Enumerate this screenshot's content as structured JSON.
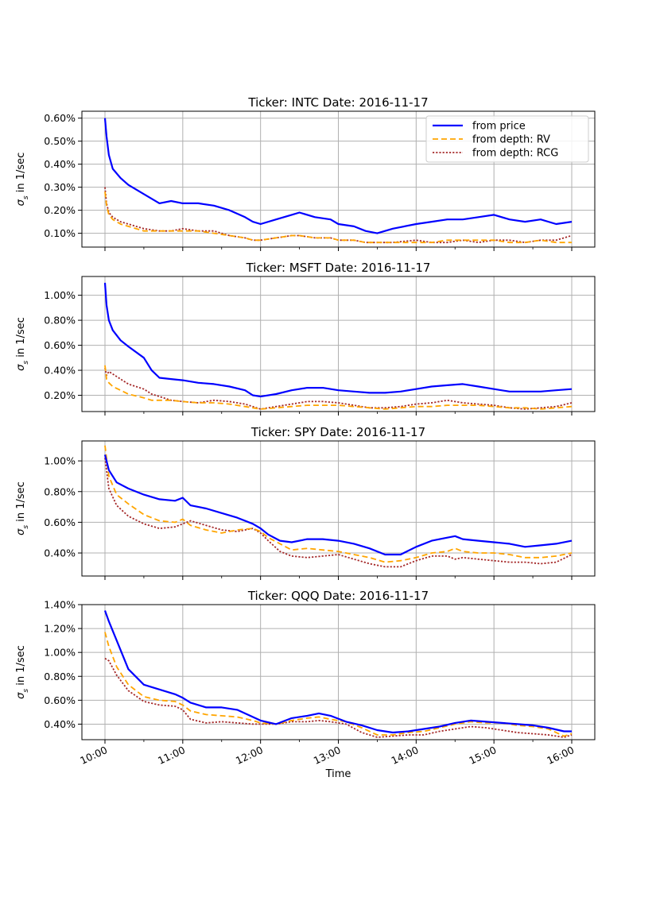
{
  "chart_data": {
    "type": "line",
    "xlabel": "Time",
    "ylabel_prefix": "σ",
    "ylabel_sub": "s",
    "ylabel_suffix": " in 1/sec",
    "x_ticks": [
      "10:00",
      "11:00",
      "12:00",
      "13:00",
      "14:00",
      "15:00",
      "16:00"
    ],
    "x_range_hours": [
      10,
      16
    ],
    "legend": {
      "location": "top-right",
      "entries": [
        "from price",
        "from depth: RV",
        "from depth: RCG"
      ]
    },
    "series_styles": [
      {
        "name": "from price",
        "color": "#0000ff",
        "dash": "solid"
      },
      {
        "name": "from depth: RV",
        "color": "#ffa500",
        "dash": "dashed"
      },
      {
        "name": "from depth: RCG",
        "color": "#a52a2a",
        "dash": "dotted"
      }
    ],
    "panels": [
      {
        "title": "Ticker: INTC     Date: 2016-11-17",
        "ylim": [
          0.0004,
          0.0063
        ],
        "yticks": [
          0.001,
          0.002,
          0.003,
          0.004,
          0.005,
          0.006
        ],
        "ytick_labels": [
          "0.10%",
          "0.20%",
          "0.30%",
          "0.40%",
          "0.50%",
          "0.60%"
        ],
        "x": [
          10.0,
          10.02,
          10.05,
          10.1,
          10.2,
          10.3,
          10.5,
          10.7,
          10.85,
          11.0,
          11.2,
          11.4,
          11.6,
          11.8,
          11.9,
          12.0,
          12.2,
          12.4,
          12.5,
          12.7,
          12.9,
          13.0,
          13.2,
          13.35,
          13.5,
          13.7,
          14.0,
          14.2,
          14.4,
          14.6,
          14.8,
          15.0,
          15.2,
          15.4,
          15.6,
          15.8,
          16.0
        ],
        "series": [
          {
            "name": "from price",
            "values": [
              0.006,
              0.0052,
              0.0044,
              0.0038,
              0.0034,
              0.0031,
              0.0027,
              0.0023,
              0.0024,
              0.0023,
              0.0023,
              0.0022,
              0.002,
              0.0017,
              0.0015,
              0.0014,
              0.0016,
              0.0018,
              0.0019,
              0.0017,
              0.0016,
              0.0014,
              0.0013,
              0.0011,
              0.001,
              0.0012,
              0.0014,
              0.0015,
              0.0016,
              0.0016,
              0.0017,
              0.0018,
              0.0016,
              0.0015,
              0.0016,
              0.0014,
              0.0015
            ]
          },
          {
            "name": "from depth: RV",
            "values": [
              0.0028,
              0.0022,
              0.0018,
              0.0016,
              0.0014,
              0.0013,
              0.0011,
              0.0011,
              0.0011,
              0.0011,
              0.0011,
              0.001,
              0.0009,
              0.0008,
              0.0007,
              0.0007,
              0.0008,
              0.0009,
              0.0009,
              0.0008,
              0.0008,
              0.0007,
              0.0007,
              0.0006,
              0.0006,
              0.0006,
              0.0006,
              0.0006,
              0.0007,
              0.0007,
              0.0007,
              0.0007,
              0.0006,
              0.0006,
              0.0007,
              0.0006,
              0.0006
            ]
          },
          {
            "name": "from depth: RCG",
            "values": [
              0.003,
              0.0023,
              0.0019,
              0.0017,
              0.0015,
              0.0014,
              0.0012,
              0.0011,
              0.0011,
              0.0012,
              0.0011,
              0.0011,
              0.0009,
              0.0008,
              0.0007,
              0.0007,
              0.0008,
              0.0009,
              0.0009,
              0.0008,
              0.0008,
              0.0007,
              0.0007,
              0.0006,
              0.0006,
              0.0006,
              0.0007,
              0.0006,
              0.0006,
              0.0007,
              0.0006,
              0.0007,
              0.0007,
              0.0006,
              0.0007,
              0.0007,
              0.0009
            ]
          }
        ]
      },
      {
        "title": "Ticker: MSFT     Date: 2016-11-17",
        "ylim": [
          0.0007,
          0.0115
        ],
        "yticks": [
          0.002,
          0.004,
          0.006,
          0.008,
          0.01
        ],
        "ytick_labels": [
          "0.20%",
          "0.40%",
          "0.60%",
          "0.80%",
          "1.00%"
        ],
        "x": [
          10.0,
          10.02,
          10.05,
          10.1,
          10.2,
          10.3,
          10.5,
          10.6,
          10.7,
          10.85,
          11.0,
          11.2,
          11.4,
          11.6,
          11.8,
          11.9,
          12.0,
          12.2,
          12.4,
          12.6,
          12.8,
          13.0,
          13.2,
          13.4,
          13.6,
          13.8,
          14.0,
          14.2,
          14.4,
          14.6,
          14.8,
          15.0,
          15.2,
          15.4,
          15.6,
          15.8,
          16.0
        ],
        "series": [
          {
            "name": "from price",
            "values": [
              0.011,
              0.0092,
              0.008,
              0.0072,
              0.0064,
              0.0059,
              0.005,
              0.004,
              0.0034,
              0.0033,
              0.0032,
              0.003,
              0.0029,
              0.0027,
              0.0024,
              0.002,
              0.0019,
              0.0021,
              0.0024,
              0.0026,
              0.0026,
              0.0024,
              0.0023,
              0.0022,
              0.0022,
              0.0023,
              0.0025,
              0.0027,
              0.0028,
              0.0029,
              0.0027,
              0.0025,
              0.0023,
              0.0023,
              0.0023,
              0.0024,
              0.0025
            ]
          },
          {
            "name": "from depth: RV",
            "values": [
              0.0044,
              0.0033,
              0.003,
              0.0027,
              0.0024,
              0.0021,
              0.0018,
              0.0016,
              0.0016,
              0.0016,
              0.0015,
              0.0014,
              0.0014,
              0.0013,
              0.0011,
              0.001,
              0.0009,
              0.001,
              0.0011,
              0.0012,
              0.0012,
              0.0012,
              0.0011,
              0.001,
              0.0009,
              0.001,
              0.0011,
              0.0011,
              0.0012,
              0.0012,
              0.0012,
              0.0011,
              0.001,
              0.001,
              0.0009,
              0.001,
              0.0011
            ]
          },
          {
            "name": "from depth: RCG",
            "values": [
              0.0042,
              0.0036,
              0.0039,
              0.0037,
              0.0033,
              0.0029,
              0.0025,
              0.0021,
              0.0019,
              0.0016,
              0.0015,
              0.0014,
              0.0016,
              0.0015,
              0.0013,
              0.0011,
              0.0009,
              0.0011,
              0.0013,
              0.0015,
              0.0015,
              0.0014,
              0.0012,
              0.001,
              0.001,
              0.0011,
              0.0013,
              0.0014,
              0.0016,
              0.0014,
              0.0013,
              0.0012,
              0.001,
              0.0009,
              0.001,
              0.0011,
              0.0014
            ]
          }
        ]
      },
      {
        "title": "Ticker: SPY     Date: 2016-11-17",
        "ylim": [
          0.0025,
          0.0113
        ],
        "yticks": [
          0.004,
          0.006,
          0.008,
          0.01
        ],
        "ytick_labels": [
          "0.40%",
          "0.60%",
          "0.80%",
          "1.00%"
        ],
        "x": [
          10.0,
          10.05,
          10.15,
          10.3,
          10.5,
          10.7,
          10.9,
          11.0,
          11.1,
          11.3,
          11.5,
          11.7,
          11.9,
          12.0,
          12.1,
          12.25,
          12.4,
          12.6,
          12.8,
          13.0,
          13.2,
          13.4,
          13.6,
          13.8,
          14.0,
          14.2,
          14.4,
          14.5,
          14.6,
          14.8,
          15.0,
          15.2,
          15.4,
          15.6,
          15.8,
          16.0
        ],
        "series": [
          {
            "name": "from price",
            "values": [
              0.0104,
              0.0094,
              0.0086,
              0.0082,
              0.0078,
              0.0075,
              0.0074,
              0.0076,
              0.0071,
              0.0069,
              0.0066,
              0.0063,
              0.0059,
              0.0056,
              0.0052,
              0.0048,
              0.0047,
              0.0049,
              0.0049,
              0.0048,
              0.0046,
              0.0043,
              0.0039,
              0.0039,
              0.0044,
              0.0048,
              0.005,
              0.0051,
              0.0049,
              0.0048,
              0.0047,
              0.0046,
              0.0044,
              0.0045,
              0.0046,
              0.0048
            ]
          },
          {
            "name": "from depth: RV",
            "values": [
              0.011,
              0.009,
              0.0078,
              0.0072,
              0.0065,
              0.0061,
              0.006,
              0.0062,
              0.0058,
              0.0055,
              0.0053,
              0.0055,
              0.0056,
              0.0054,
              0.005,
              0.0046,
              0.0042,
              0.0043,
              0.0042,
              0.0041,
              0.0039,
              0.0037,
              0.0034,
              0.0035,
              0.0037,
              0.004,
              0.0041,
              0.0043,
              0.0041,
              0.004,
              0.004,
              0.0039,
              0.0037,
              0.0037,
              0.0038,
              0.004
            ]
          },
          {
            "name": "from depth: RCG",
            "values": [
              0.0102,
              0.0082,
              0.0071,
              0.0064,
              0.0059,
              0.0056,
              0.0057,
              0.0059,
              0.0061,
              0.0058,
              0.0055,
              0.0054,
              0.0056,
              0.0053,
              0.0048,
              0.0041,
              0.0038,
              0.0037,
              0.0038,
              0.0039,
              0.0036,
              0.0033,
              0.0031,
              0.0031,
              0.0035,
              0.0038,
              0.0038,
              0.0036,
              0.0037,
              0.0036,
              0.0035,
              0.0034,
              0.0034,
              0.0033,
              0.0034,
              0.0039
            ]
          }
        ]
      },
      {
        "title": "Ticker: QQQ     Date: 2016-11-17",
        "ylim": [
          0.0027,
          0.014
        ],
        "yticks": [
          0.004,
          0.006,
          0.008,
          0.01,
          0.012,
          0.014
        ],
        "ytick_labels": [
          "0.40%",
          "0.60%",
          "0.80%",
          "1.00%",
          "1.20%",
          "1.40%"
        ],
        "x": [
          10.0,
          10.05,
          10.15,
          10.3,
          10.5,
          10.7,
          10.9,
          11.0,
          11.1,
          11.3,
          11.5,
          11.7,
          11.9,
          12.0,
          12.2,
          12.4,
          12.6,
          12.75,
          12.9,
          13.1,
          13.3,
          13.5,
          13.7,
          13.9,
          14.1,
          14.3,
          14.5,
          14.7,
          14.9,
          15.1,
          15.3,
          15.5,
          15.7,
          15.9,
          16.0
        ],
        "series": [
          {
            "name": "from price",
            "values": [
              0.0135,
              0.0126,
              0.011,
              0.0086,
              0.0073,
              0.0069,
              0.0065,
              0.0062,
              0.0058,
              0.0054,
              0.0054,
              0.0052,
              0.0046,
              0.0043,
              0.004,
              0.0045,
              0.0047,
              0.0049,
              0.0047,
              0.0042,
              0.0039,
              0.0035,
              0.0033,
              0.0034,
              0.0036,
              0.0038,
              0.0041,
              0.0043,
              0.0042,
              0.0041,
              0.004,
              0.0039,
              0.0037,
              0.0034,
              0.0034
            ]
          },
          {
            "name": "from depth: RV",
            "values": [
              0.0117,
              0.0105,
              0.0088,
              0.0073,
              0.0063,
              0.006,
              0.0059,
              0.0056,
              0.0051,
              0.0048,
              0.0047,
              0.0046,
              0.0043,
              0.0041,
              0.004,
              0.0043,
              0.0045,
              0.0046,
              0.0044,
              0.0042,
              0.0037,
              0.0031,
              0.0031,
              0.0033,
              0.0034,
              0.0037,
              0.004,
              0.0042,
              0.0041,
              0.0041,
              0.0039,
              0.0038,
              0.0036,
              0.003,
              0.0032
            ]
          },
          {
            "name": "from depth: RCG",
            "values": [
              0.0095,
              0.0093,
              0.0081,
              0.0068,
              0.0059,
              0.0056,
              0.0055,
              0.0052,
              0.0044,
              0.0041,
              0.0042,
              0.0041,
              0.004,
              0.004,
              0.004,
              0.0042,
              0.0042,
              0.0043,
              0.0042,
              0.004,
              0.0033,
              0.0029,
              0.003,
              0.0031,
              0.0031,
              0.0034,
              0.0036,
              0.0038,
              0.0037,
              0.0035,
              0.0033,
              0.0032,
              0.0031,
              0.0029,
              0.0031
            ]
          }
        ]
      }
    ]
  }
}
